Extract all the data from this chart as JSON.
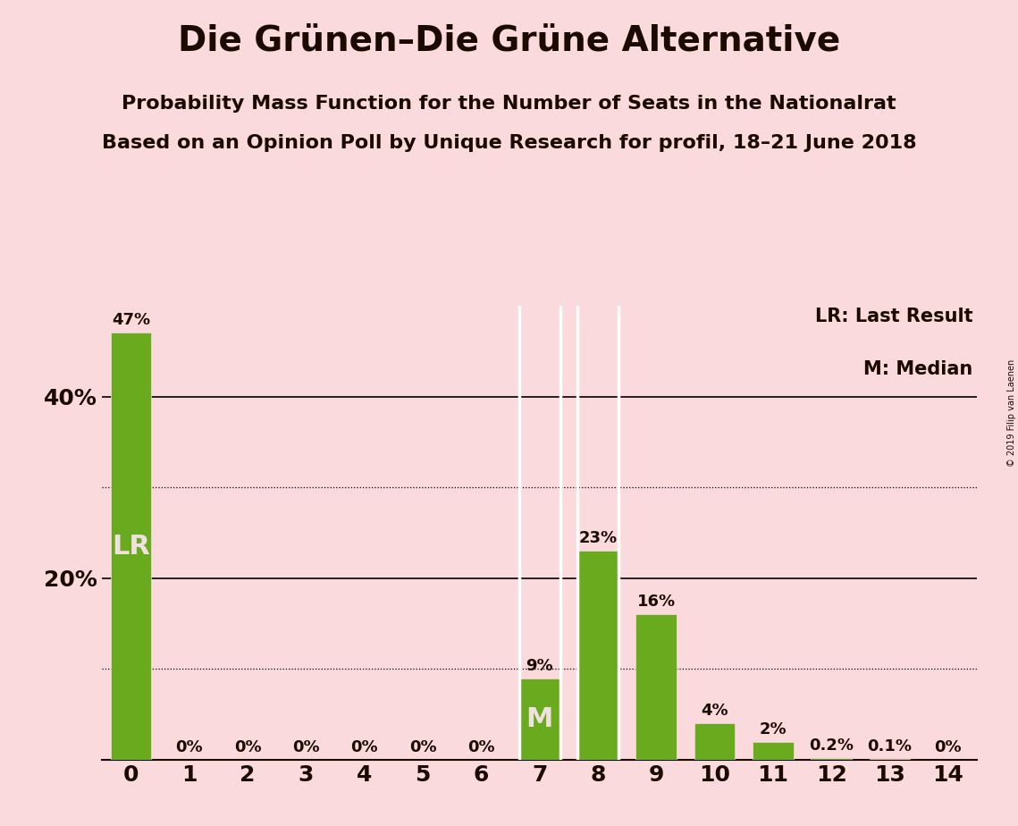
{
  "title": "Die Grünen–Die Grüne Alternative",
  "subtitle1": "Probability Mass Function for the Number of Seats in the Nationalrat",
  "subtitle2": "Based on an Opinion Poll by Unique Research for profil, 18–21 June 2018",
  "copyright": "© 2019 Filip van Laenen",
  "legend_lr": "LR: Last Result",
  "legend_m": "M: Median",
  "categories": [
    0,
    1,
    2,
    3,
    4,
    5,
    6,
    7,
    8,
    9,
    10,
    11,
    12,
    13,
    14
  ],
  "values": [
    47,
    0,
    0,
    0,
    0,
    0,
    0,
    9,
    23,
    16,
    4,
    2,
    0.2,
    0.1,
    0
  ],
  "bar_labels": [
    "47%",
    "0%",
    "0%",
    "0%",
    "0%",
    "0%",
    "0%",
    "9%",
    "23%",
    "16%",
    "4%",
    "2%",
    "0.2%",
    "0.1%",
    "0%"
  ],
  "bar_color": "#6aaa1e",
  "background_color": "#fadadd",
  "text_color": "#1a0a00",
  "grid_color": "#000000",
  "label_in_bar": {
    "0": "LR",
    "7": "M"
  },
  "label_in_bar_color": "#f0e0e0",
  "median_bar_index": 7,
  "lr_bar_index": 0,
  "ylim": [
    0,
    50
  ],
  "solid_yticks": [
    20,
    40
  ],
  "dotted_yticks": [
    10,
    30
  ],
  "title_fontsize": 28,
  "subtitle_fontsize": 16,
  "axis_fontsize": 18,
  "bar_label_fontsize": 13,
  "inbar_label_fontsize": 22,
  "legend_fontsize": 15
}
